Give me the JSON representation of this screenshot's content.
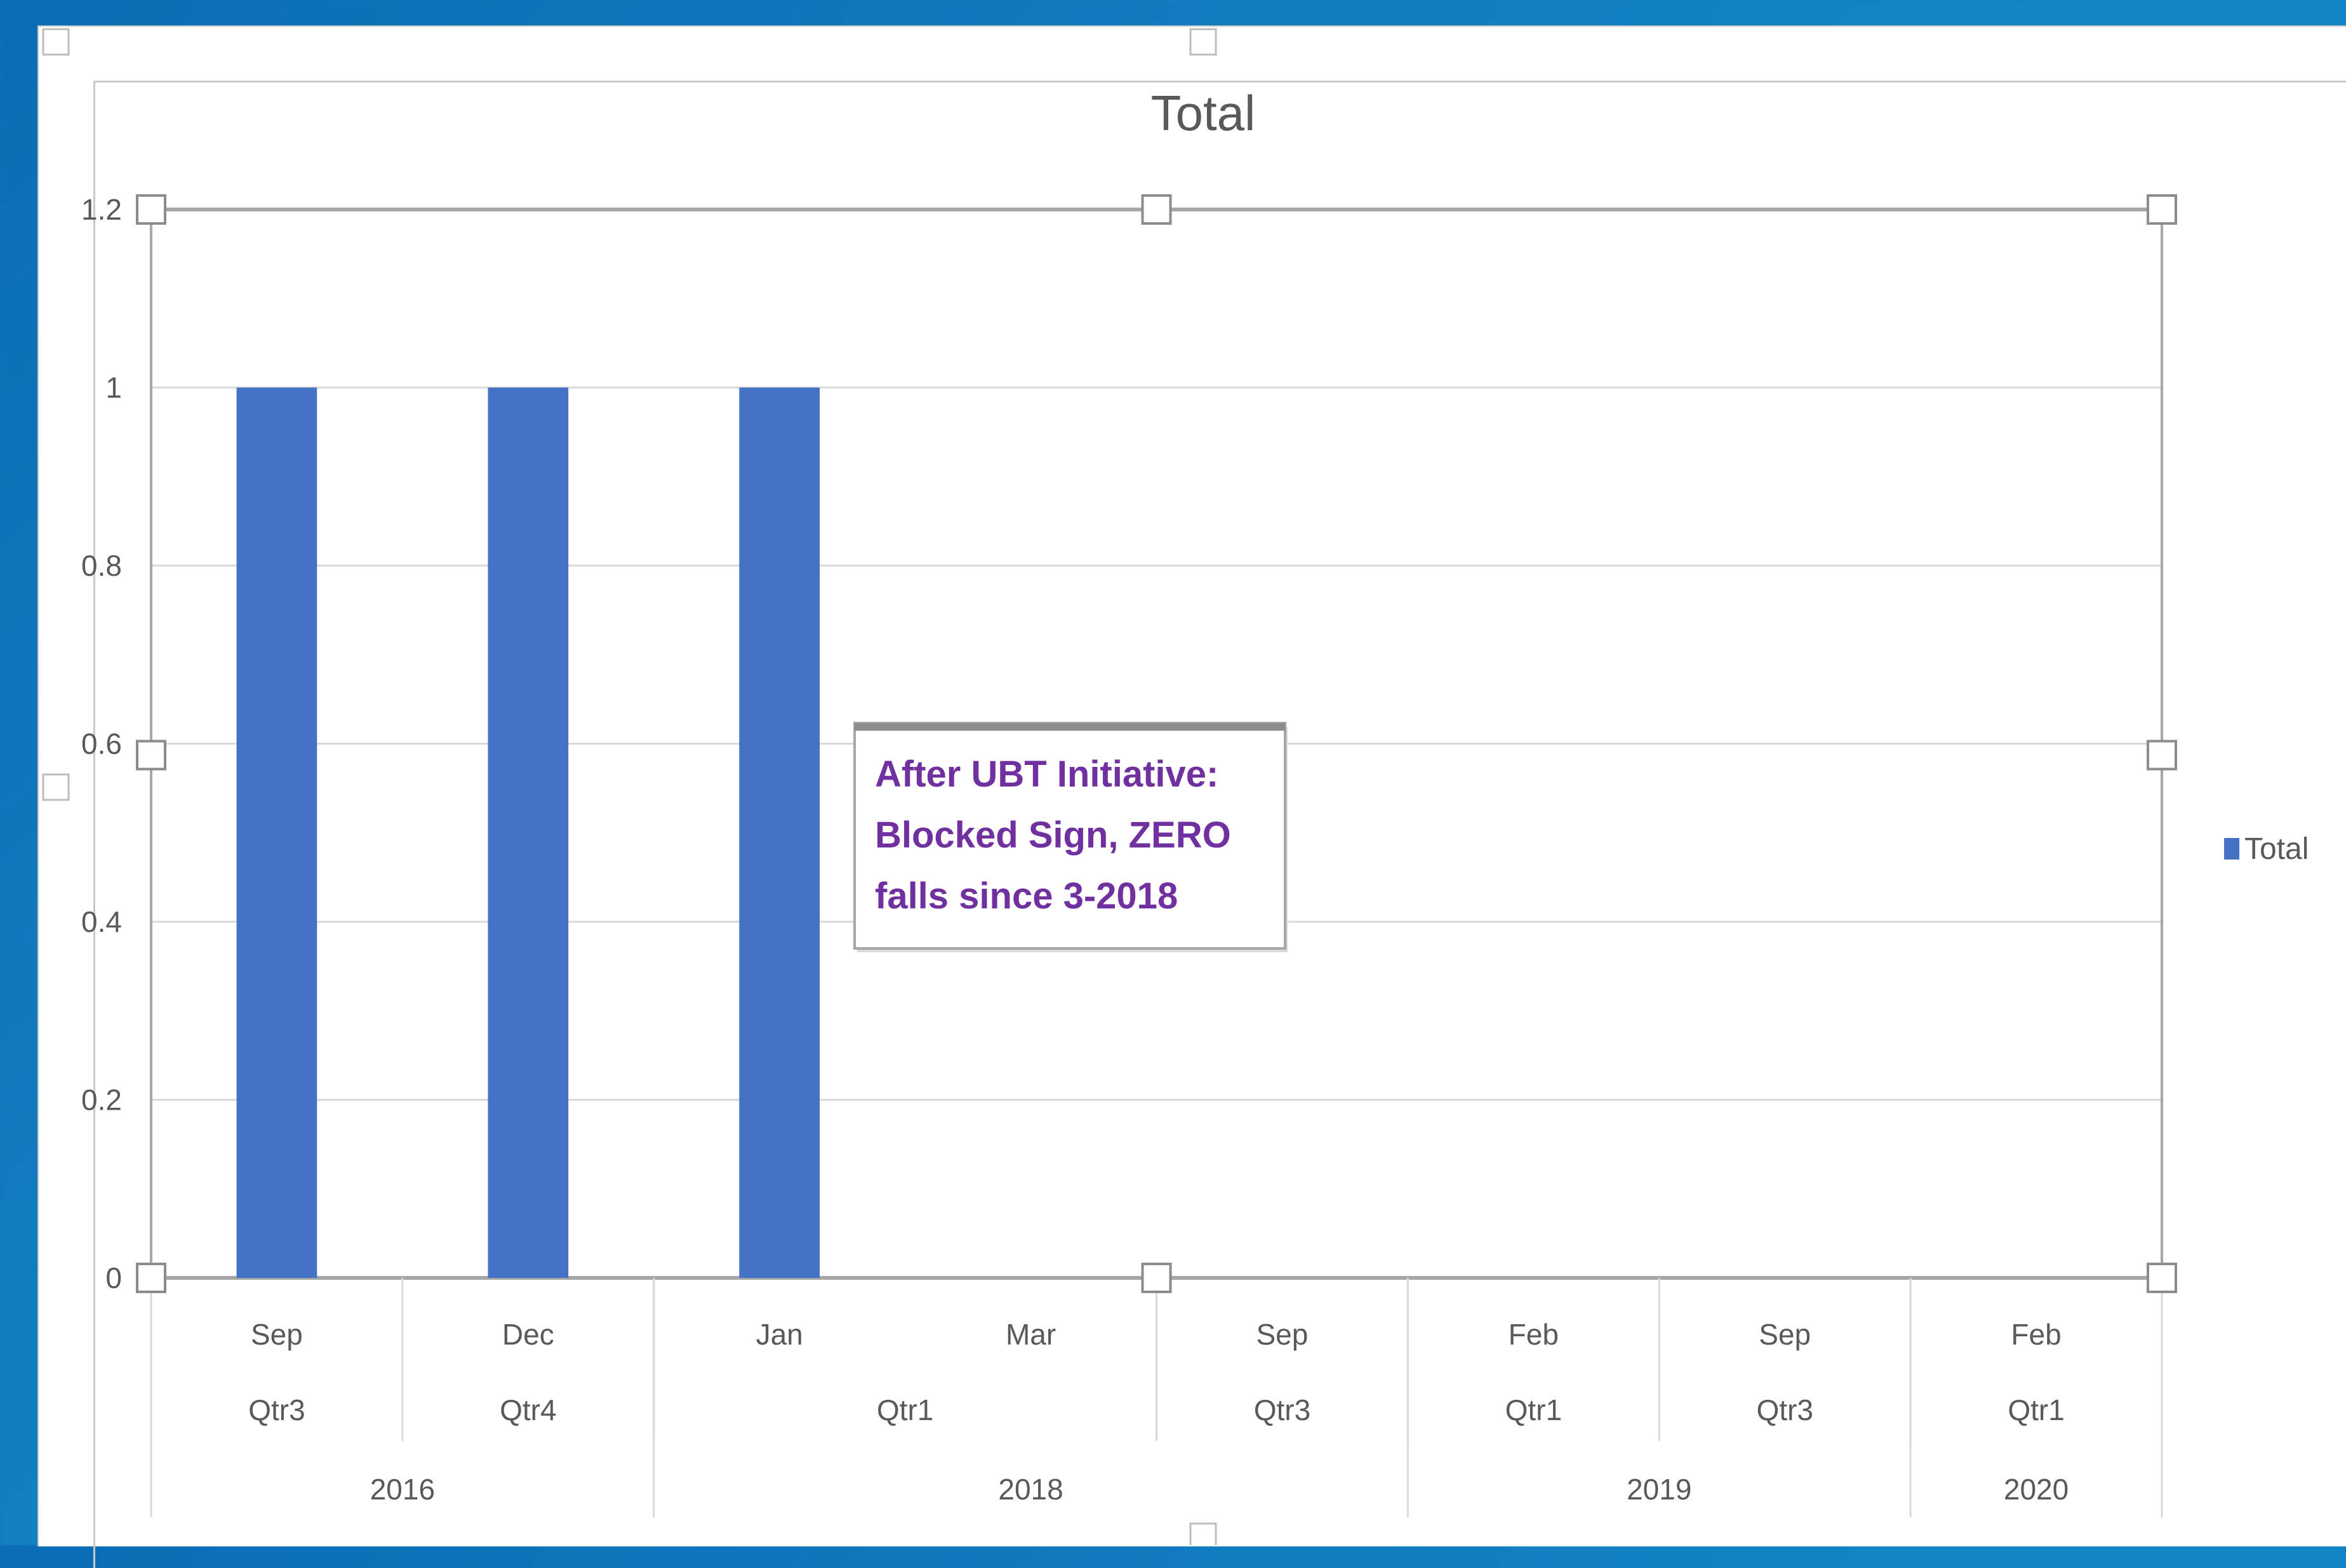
{
  "chart_data": {
    "type": "bar",
    "title": "Total",
    "xlabel": "",
    "ylabel": "",
    "ylim": [
      0,
      1.2
    ],
    "yticks": [
      "0",
      "0.2",
      "0.4",
      "0.6",
      "0.8",
      "1",
      "1.2"
    ],
    "grid": true,
    "legend_position": "right",
    "categories": [
      "Sep",
      "Dec",
      "Jan",
      "Mar",
      "Sep",
      "Feb",
      "Sep",
      "Feb"
    ],
    "category_levels": {
      "quarters": [
        {
          "label": "Qtr3",
          "span": 1
        },
        {
          "label": "Qtr4",
          "span": 1
        },
        {
          "label": "Qtr1",
          "span": 2
        },
        {
          "label": "Qtr3",
          "span": 1
        },
        {
          "label": "Qtr1",
          "span": 1
        },
        {
          "label": "Qtr3",
          "span": 1
        },
        {
          "label": "Qtr1",
          "span": 1
        }
      ],
      "years": [
        {
          "label": "2016",
          "span": 2
        },
        {
          "label": "2018",
          "span": 3
        },
        {
          "label": "2019",
          "span": 2
        },
        {
          "label": "2020",
          "span": 1
        }
      ]
    },
    "series": [
      {
        "name": "Total",
        "color": "#4472c4",
        "values": [
          1,
          1,
          1,
          0,
          0,
          0,
          0,
          0
        ]
      }
    ],
    "annotation": {
      "lines": [
        "After UBT Initiative:",
        "Blocked Sign, ZERO",
        "falls since 3-2018"
      ],
      "color": "#7030a0"
    }
  }
}
